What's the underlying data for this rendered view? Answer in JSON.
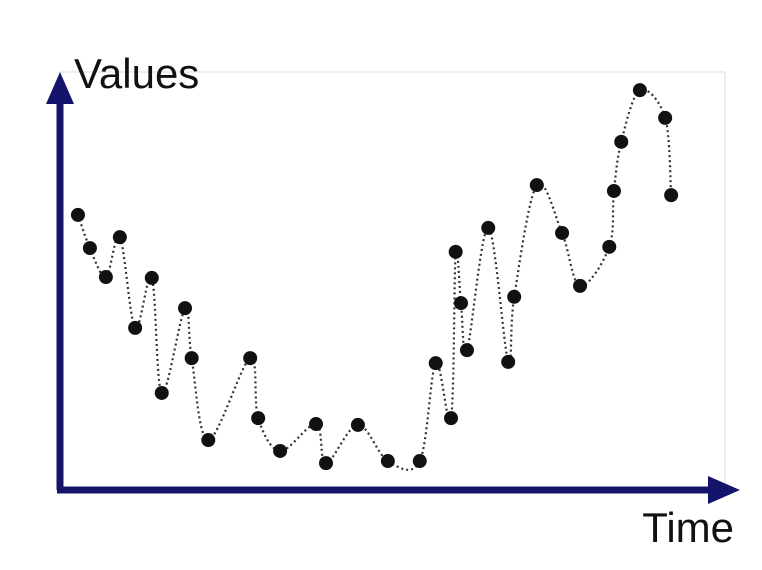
{
  "chart_data": {
    "type": "scatter",
    "xlabel": "Time",
    "ylabel": "Values",
    "xlim": [
      0,
      100
    ],
    "ylim": [
      0,
      100
    ],
    "color": "#111111",
    "x": [
      2.7,
      4.5,
      6.9,
      9.0,
      11.3,
      13.8,
      15.3,
      18.8,
      19.8,
      22.3,
      28.6,
      29.8,
      33.1,
      38.5,
      40.0,
      44.8,
      49.3,
      54.1,
      56.5,
      58.8,
      59.5,
      60.3,
      61.2,
      64.4,
      67.4,
      68.3,
      71.7,
      75.5,
      78.2,
      82.6,
      83.3,
      84.4,
      87.2,
      91.0,
      91.9
    ],
    "values": [
      65.5,
      57.6,
      50.7,
      60.2,
      38.6,
      50.5,
      23.1,
      43.3,
      31.4,
      11.9,
      31.4,
      17.1,
      9.3,
      15.7,
      6.4,
      15.5,
      6.9,
      6.9,
      30.2,
      17.1,
      56.7,
      44.5,
      33.3,
      62.4,
      30.5,
      46.0,
      72.6,
      61.2,
      48.6,
      57.9,
      71.2,
      82.9,
      95.2,
      88.6,
      70.2
    ]
  }
}
